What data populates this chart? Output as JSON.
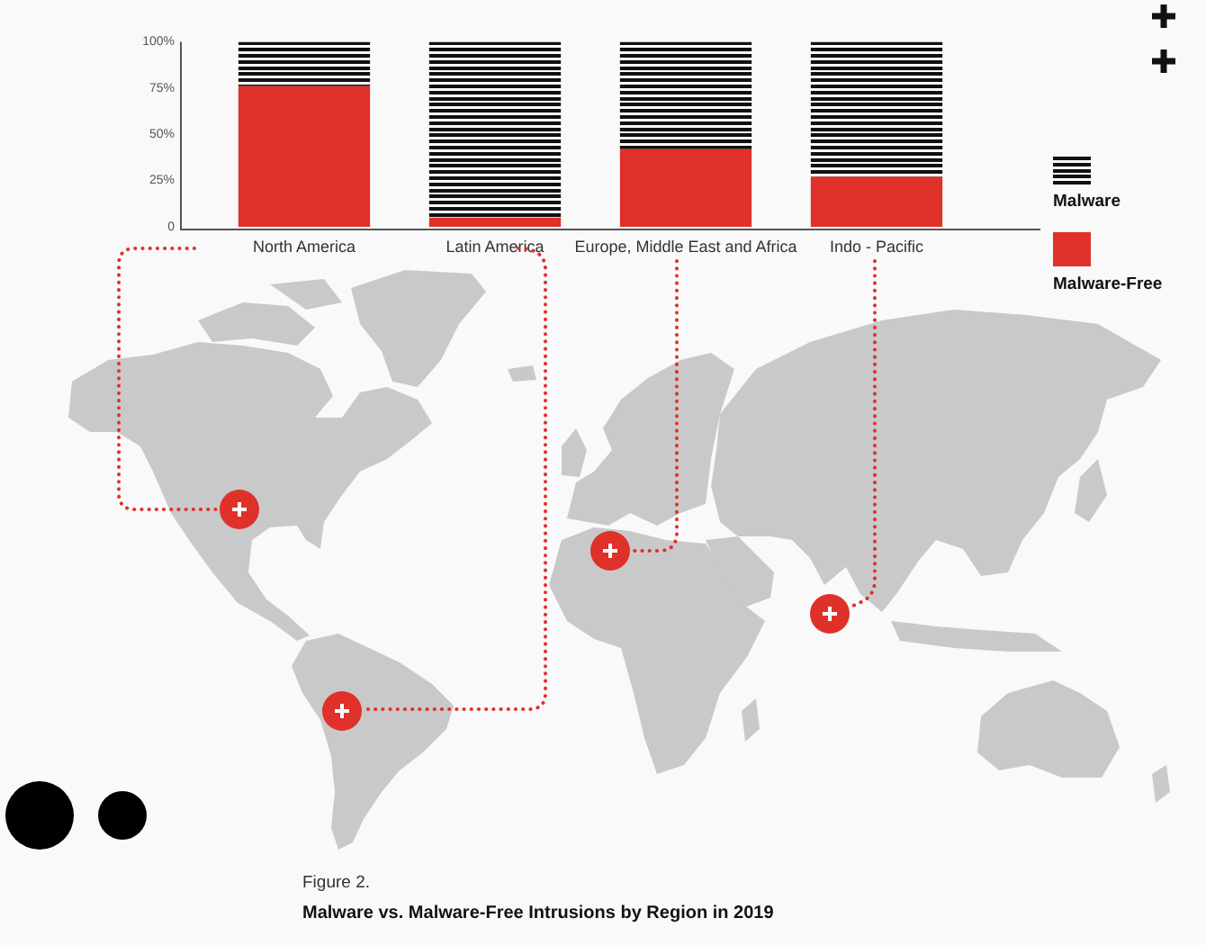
{
  "chart_data": {
    "type": "bar",
    "title": "Malware vs. Malware-Free Intrusions by Region in 2019",
    "annotations": [
      "Figure 2."
    ],
    "categories": [
      "North America",
      "Latin America",
      "Europe, Middle East and Africa",
      "Indo - Pacific"
    ],
    "stacked": true,
    "series": [
      {
        "name": "Malware-Free",
        "color": "#e0302a",
        "values": [
          76,
          5,
          42,
          27
        ]
      },
      {
        "name": "Malware",
        "color": "#111111",
        "values": [
          24,
          95,
          58,
          73
        ]
      }
    ],
    "ylim": [
      0,
      100
    ],
    "yticks": [
      0,
      {
        "value": 25,
        "label": "25%"
      },
      {
        "value": 50,
        "label": "50%"
      },
      {
        "value": 75,
        "label": "75%"
      },
      {
        "value": 100,
        "label": "100%"
      }
    ],
    "legend": "right"
  }
}
